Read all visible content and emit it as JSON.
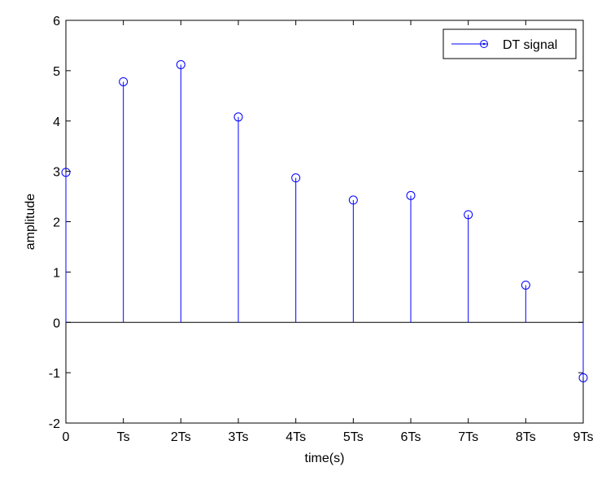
{
  "chart_data": {
    "type": "stem",
    "xlabel": "time(s)",
    "ylabel": "amplitude",
    "xlim": [
      0,
      9
    ],
    "ylim": [
      -2,
      6
    ],
    "x_ticks": [
      {
        "value": 0,
        "label": "0"
      },
      {
        "value": 1,
        "label": "Ts"
      },
      {
        "value": 2,
        "label": "2Ts"
      },
      {
        "value": 3,
        "label": "3Ts"
      },
      {
        "value": 4,
        "label": "4Ts"
      },
      {
        "value": 5,
        "label": "5Ts"
      },
      {
        "value": 6,
        "label": "6Ts"
      },
      {
        "value": 7,
        "label": "7Ts"
      },
      {
        "value": 8,
        "label": "8Ts"
      },
      {
        "value": 9,
        "label": "9Ts"
      }
    ],
    "y_ticks": [
      -2,
      -1,
      0,
      1,
      2,
      3,
      4,
      5,
      6
    ],
    "series": [
      {
        "name": "DT signal",
        "color": "#0000ff",
        "marker": "circle",
        "x": [
          0,
          1,
          2,
          3,
          4,
          5,
          6,
          7,
          8,
          9
        ],
        "values": [
          2.98,
          4.78,
          5.12,
          4.08,
          2.87,
          2.43,
          2.52,
          2.14,
          0.74,
          -1.1
        ]
      }
    ],
    "baseline": 0,
    "legend": "top-right",
    "grid": false
  }
}
